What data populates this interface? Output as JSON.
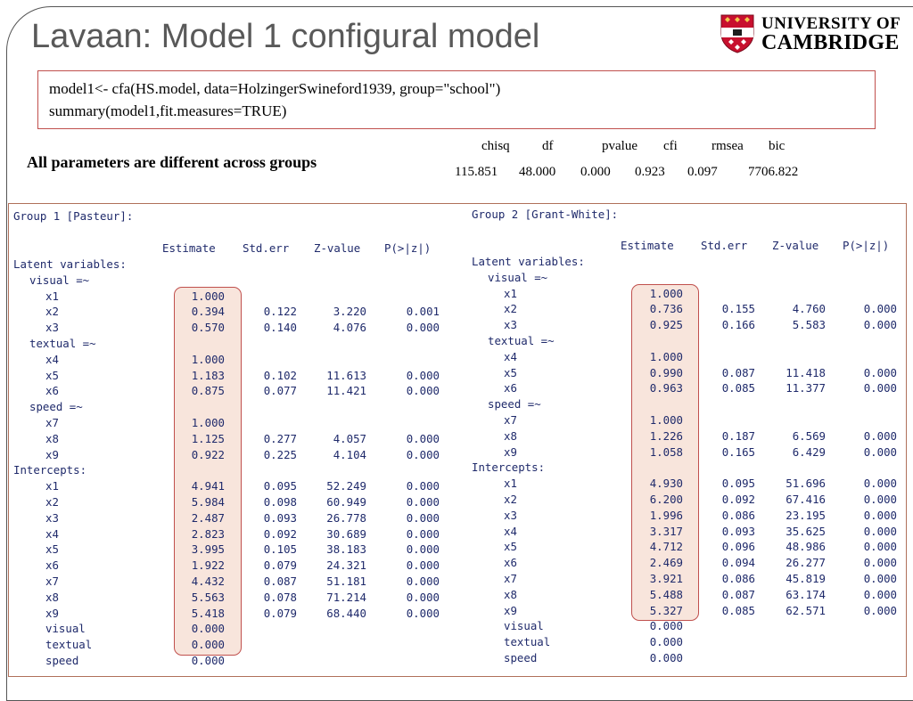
{
  "slide": {
    "title": "Lavaan: Model 1 configural model",
    "logo": {
      "line1": "UNIVERSITY OF",
      "line2": "CAMBRIDGE"
    },
    "code": [
      "model1<- cfa(HS.model, data=HolzingerSwineford1939, group=\"school\")",
      "summary(model1,fit.measures=TRUE)"
    ],
    "note": "All parameters are different across groups",
    "fit": {
      "headers": [
        "chisq",
        "df",
        "pvalue",
        "cfi",
        "rmsea",
        "bic"
      ],
      "values": [
        "115.851",
        "48.000",
        "0.000",
        "0.923",
        "0.097",
        "7706.822"
      ]
    },
    "colors": {
      "title": "#595959",
      "highlight_border": "#c0504d",
      "highlight_fill": "#f8e5dc",
      "output_text": "#1f2a6b"
    }
  },
  "output": {
    "headers": [
      "Estimate",
      "Std.err",
      "Z-value",
      "P(>|z|)"
    ],
    "groups": [
      {
        "title": "Group 1 [Pasteur]:",
        "rows": [
          {
            "label": "Latent variables:",
            "indent": 0
          },
          {
            "label": "visual =~",
            "indent": 1
          },
          {
            "label": "x1",
            "indent": 2,
            "est": "1.000"
          },
          {
            "label": "x2",
            "indent": 2,
            "est": "0.394",
            "se": "0.122",
            "z": "3.220",
            "p": "0.001"
          },
          {
            "label": "x3",
            "indent": 2,
            "est": "0.570",
            "se": "0.140",
            "z": "4.076",
            "p": "0.000"
          },
          {
            "label": "textual =~",
            "indent": 1
          },
          {
            "label": "x4",
            "indent": 2,
            "est": "1.000"
          },
          {
            "label": "x5",
            "indent": 2,
            "est": "1.183",
            "se": "0.102",
            "z": "11.613",
            "p": "0.000"
          },
          {
            "label": "x6",
            "indent": 2,
            "est": "0.875",
            "se": "0.077",
            "z": "11.421",
            "p": "0.000"
          },
          {
            "label": "speed =~",
            "indent": 1
          },
          {
            "label": "x7",
            "indent": 2,
            "est": "1.000"
          },
          {
            "label": "x8",
            "indent": 2,
            "est": "1.125",
            "se": "0.277",
            "z": "4.057",
            "p": "0.000"
          },
          {
            "label": "x9",
            "indent": 2,
            "est": "0.922",
            "se": "0.225",
            "z": "4.104",
            "p": "0.000"
          },
          {
            "label": "Intercepts:",
            "indent": 0
          },
          {
            "label": "x1",
            "indent": 2,
            "est": "4.941",
            "se": "0.095",
            "z": "52.249",
            "p": "0.000"
          },
          {
            "label": "x2",
            "indent": 2,
            "est": "5.984",
            "se": "0.098",
            "z": "60.949",
            "p": "0.000"
          },
          {
            "label": "x3",
            "indent": 2,
            "est": "2.487",
            "se": "0.093",
            "z": "26.778",
            "p": "0.000"
          },
          {
            "label": "x4",
            "indent": 2,
            "est": "2.823",
            "se": "0.092",
            "z": "30.689",
            "p": "0.000"
          },
          {
            "label": "x5",
            "indent": 2,
            "est": "3.995",
            "se": "0.105",
            "z": "38.183",
            "p": "0.000"
          },
          {
            "label": "x6",
            "indent": 2,
            "est": "1.922",
            "se": "0.079",
            "z": "24.321",
            "p": "0.000"
          },
          {
            "label": "x7",
            "indent": 2,
            "est": "4.432",
            "se": "0.087",
            "z": "51.181",
            "p": "0.000"
          },
          {
            "label": "x8",
            "indent": 2,
            "est": "5.563",
            "se": "0.078",
            "z": "71.214",
            "p": "0.000"
          },
          {
            "label": "x9",
            "indent": 2,
            "est": "5.418",
            "se": "0.079",
            "z": "68.440",
            "p": "0.000"
          },
          {
            "label": "visual",
            "indent": 2,
            "est": "0.000"
          },
          {
            "label": "textual",
            "indent": 2,
            "est": "0.000"
          },
          {
            "label": "speed",
            "indent": 2,
            "est": "0.000"
          }
        ]
      },
      {
        "title": "Group 2 [Grant-White]:",
        "rows": [
          {
            "label": "Latent variables:",
            "indent": 0
          },
          {
            "label": "visual =~",
            "indent": 1
          },
          {
            "label": "x1",
            "indent": 2,
            "est": "1.000"
          },
          {
            "label": "x2",
            "indent": 2,
            "est": "0.736",
            "se": "0.155",
            "z": "4.760",
            "p": "0.000"
          },
          {
            "label": "x3",
            "indent": 2,
            "est": "0.925",
            "se": "0.166",
            "z": "5.583",
            "p": "0.000"
          },
          {
            "label": "textual =~",
            "indent": 1
          },
          {
            "label": "x4",
            "indent": 2,
            "est": "1.000"
          },
          {
            "label": "x5",
            "indent": 2,
            "est": "0.990",
            "se": "0.087",
            "z": "11.418",
            "p": "0.000"
          },
          {
            "label": "x6",
            "indent": 2,
            "est": "0.963",
            "se": "0.085",
            "z": "11.377",
            "p": "0.000"
          },
          {
            "label": "speed =~",
            "indent": 1
          },
          {
            "label": "x7",
            "indent": 2,
            "est": "1.000"
          },
          {
            "label": "x8",
            "indent": 2,
            "est": "1.226",
            "se": "0.187",
            "z": "6.569",
            "p": "0.000"
          },
          {
            "label": "x9",
            "indent": 2,
            "est": "1.058",
            "se": "0.165",
            "z": "6.429",
            "p": "0.000"
          },
          {
            "label": "Intercepts:",
            "indent": 0
          },
          {
            "label": "x1",
            "indent": 2,
            "est": "4.930",
            "se": "0.095",
            "z": "51.696",
            "p": "0.000"
          },
          {
            "label": "x2",
            "indent": 2,
            "est": "6.200",
            "se": "0.092",
            "z": "67.416",
            "p": "0.000"
          },
          {
            "label": "x3",
            "indent": 2,
            "est": "1.996",
            "se": "0.086",
            "z": "23.195",
            "p": "0.000"
          },
          {
            "label": "x4",
            "indent": 2,
            "est": "3.317",
            "se": "0.093",
            "z": "35.625",
            "p": "0.000"
          },
          {
            "label": "x5",
            "indent": 2,
            "est": "4.712",
            "se": "0.096",
            "z": "48.986",
            "p": "0.000"
          },
          {
            "label": "x6",
            "indent": 2,
            "est": "2.469",
            "se": "0.094",
            "z": "26.277",
            "p": "0.000"
          },
          {
            "label": "x7",
            "indent": 2,
            "est": "3.921",
            "se": "0.086",
            "z": "45.819",
            "p": "0.000"
          },
          {
            "label": "x8",
            "indent": 2,
            "est": "5.488",
            "se": "0.087",
            "z": "63.174",
            "p": "0.000"
          },
          {
            "label": "x9",
            "indent": 2,
            "est": "5.327",
            "se": "0.085",
            "z": "62.571",
            "p": "0.000"
          },
          {
            "label": "visual",
            "indent": 2,
            "est": "0.000"
          },
          {
            "label": "textual",
            "indent": 2,
            "est": "0.000"
          },
          {
            "label": "speed",
            "indent": 2,
            "est": "0.000"
          }
        ]
      }
    ]
  }
}
